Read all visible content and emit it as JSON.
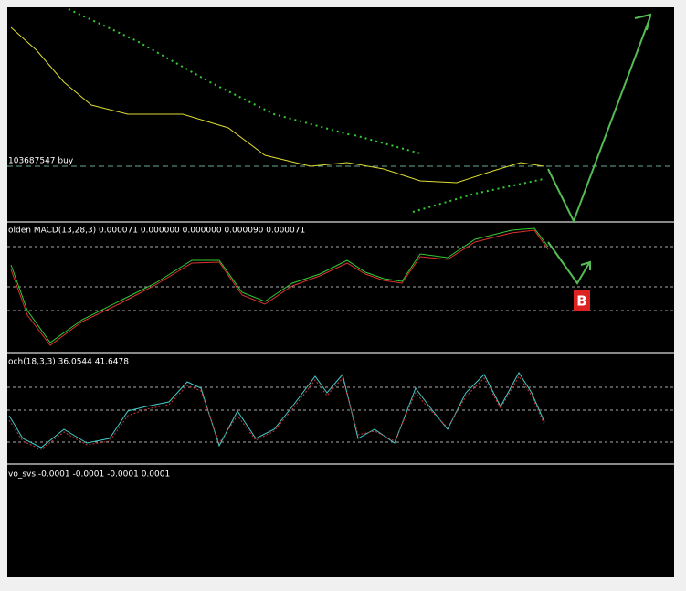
{
  "main_panel": {
    "order_label": "103687547 buy"
  },
  "macd_panel": {
    "label": "olden MACD(13,28,3) 0.000071 0.000000 0.000000 0.000090 0.000071"
  },
  "stoch_panel": {
    "label": "och(18,3,3) 36.0544 41.6478"
  },
  "volume_panel": {
    "label": "vo_svs -0.0001 -0.0001 -0.0001 0.0001"
  },
  "annotation": {
    "text": "B"
  }
}
